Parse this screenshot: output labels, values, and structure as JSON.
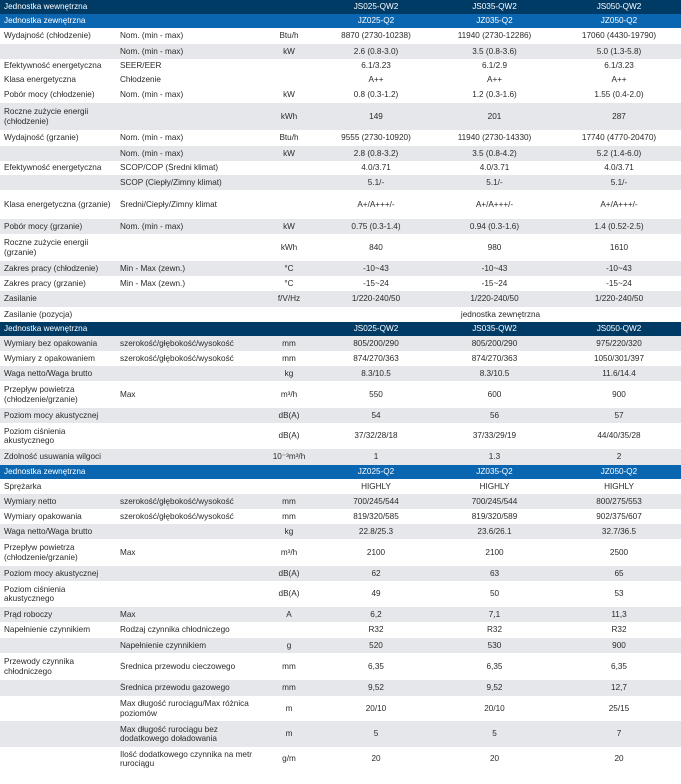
{
  "rows": [
    {
      "kind": "hdr-dark",
      "h": 14,
      "cells": [
        "Jednostka wewnętrzna",
        "",
        "",
        "JS025-QW2",
        "JS035-QW2",
        "JS050-QW2"
      ]
    },
    {
      "kind": "hdr-blue",
      "h": 14,
      "cells": [
        "Jednostka zewnętrzna",
        "",
        "",
        "JZ025-Q2",
        "JZ035-Q2",
        "JZ050-Q2"
      ]
    },
    {
      "kind": "row",
      "h": 16,
      "cells": [
        "Wydajność (chłodzenie)",
        "Nom. (min - max)",
        "Btu/h",
        "8870 (2730-10238)",
        "11940 (2730-12286)",
        "17060 (4430-19790)"
      ]
    },
    {
      "kind": "shade",
      "h": 15,
      "cells": [
        "",
        "Nom. (min - max)",
        "kW",
        "2.6 (0.8-3.0)",
        "3.5 (0.8-3.6)",
        "5.0 (1.3-5.8)"
      ]
    },
    {
      "kind": "row",
      "h": 14,
      "cells": [
        "Efektywność energetyczna",
        "SEER/EER",
        "",
        "6.1/3.23",
        "6.1/2.9",
        "6.1/3.23"
      ]
    },
    {
      "kind": "row",
      "h": 14,
      "cells": [
        "Klasa energetyczna",
        "Chłodzenie",
        "",
        "A++",
        "A++",
        "A++"
      ]
    },
    {
      "kind": "row",
      "h": 16,
      "cells": [
        "Pobór mocy (chłodzenie)",
        "Nom. (min - max)",
        "kW",
        "0.8 (0.3-1.2)",
        "1.2 (0.3-1.6)",
        "1.55 (0.4-2.0)"
      ]
    },
    {
      "kind": "shade",
      "h": 27,
      "cells": [
        "Roczne zużycie energii (chłodzenie)",
        "",
        "kWh",
        "149",
        "201",
        "287"
      ]
    },
    {
      "kind": "row",
      "h": 16,
      "cells": [
        "Wydajność (grzanie)",
        "Nom. (min - max)",
        "Btu/h",
        "9555 (2730-10920)",
        "11940 (2730-14330)",
        "17740 (4770-20470)"
      ]
    },
    {
      "kind": "shade",
      "h": 15,
      "cells": [
        "",
        "Nom. (min - max)",
        "kW",
        "2.8 (0.8-3.2)",
        "3.5 (0.8-4.2)",
        "5.2 (1.4-6.0)"
      ]
    },
    {
      "kind": "row",
      "h": 14,
      "cells": [
        "Efektywność energetyczna",
        "SCOP/COP (Średni klimat)",
        "",
        "4.0/3.71",
        "4.0/3.71",
        "4.0/3.71"
      ]
    },
    {
      "kind": "shade",
      "h": 15,
      "cells": [
        "",
        "SCOP (Ciepły/Zimny klimat)",
        "",
        "5.1/-",
        "5.1/-",
        "5.1/-"
      ]
    },
    {
      "kind": "row",
      "h": 29,
      "cells": [
        "Klasa energetyczna (grzanie)",
        "Średni/Ciepły/Zimny klimat",
        "",
        "A+/A+++/-",
        "A+/A+++/-",
        "A+/A+++/-"
      ]
    },
    {
      "kind": "shade",
      "h": 15,
      "cells": [
        "Pobór mocy (grzanie)",
        "Nom. (min - max)",
        "kW",
        "0.75 (0.3-1.4)",
        "0.94 (0.3-1.6)",
        "1.4 (0.52-2.5)"
      ]
    },
    {
      "kind": "row",
      "h": 27,
      "cells": [
        "Roczne zużycie energii (grzanie)",
        "",
        "kWh",
        "840",
        "980",
        "1610"
      ]
    },
    {
      "kind": "shade",
      "h": 15,
      "cells": [
        "Zakres pracy (chłodzenie)",
        "Min - Max (zewn.)",
        "°C",
        "-10~43",
        "-10~43",
        "-10~43"
      ]
    },
    {
      "kind": "row",
      "h": 15,
      "cells": [
        "Zakres pracy (grzanie)",
        "Min - Max (zewn.)",
        "°C",
        "-15~24",
        "-15~24",
        "-15~24"
      ]
    },
    {
      "kind": "shade",
      "h": 16,
      "cells": [
        "Zasilanie",
        "",
        "f/V/Hz",
        "1/220-240/50",
        "1/220-240/50",
        "1/220-240/50"
      ]
    },
    {
      "kind": "row",
      "h": 15,
      "cells": [
        "Zasilanie (pozycja)",
        "",
        "",
        "",
        "jednostka zewnętrzna",
        ""
      ]
    },
    {
      "kind": "hdr-dark",
      "h": 14,
      "cells": [
        "Jednostka wewnętrzna",
        "",
        "",
        "JS025-QW2",
        "JS035-QW2",
        "JS050-QW2"
      ]
    },
    {
      "kind": "shade",
      "h": 15,
      "cells": [
        "Wymiary bez opakowania",
        "szerokość/głębokość/wysokość",
        "mm",
        "805/200/290",
        "805/200/290",
        "975/220/320"
      ]
    },
    {
      "kind": "row",
      "h": 15,
      "cells": [
        "Wymiary z opakowaniem",
        "szerokość/głębokość/wysokość",
        "mm",
        "874/270/363",
        "874/270/363",
        "1050/301/397"
      ]
    },
    {
      "kind": "shade",
      "h": 15,
      "cells": [
        "Waga netto/Waga brutto",
        "",
        "kg",
        "8.3/10.5",
        "8.3/10.5",
        "11.6/14.4"
      ]
    },
    {
      "kind": "row",
      "h": 27,
      "cells": [
        "Przepływ powietrza (chłodzenie/grzanie)",
        "Max",
        "m³/h",
        "550",
        "600",
        "900"
      ]
    },
    {
      "kind": "shade",
      "h": 15,
      "cells": [
        "Poziom mocy akustycznej",
        "",
        "dB(A)",
        "54",
        "56",
        "57"
      ]
    },
    {
      "kind": "row",
      "h": 26,
      "cells": [
        "Poziom ciśnienia akustycznego",
        "",
        "dB(A)",
        "37/32/28/18",
        "37/33/29/19",
        "44/40/35/28"
      ]
    },
    {
      "kind": "shade",
      "h": 16,
      "cells": [
        "Zdolność usuwania wilgoci",
        "",
        "10⁻³m³/h",
        "1",
        "1.3",
        "2"
      ]
    },
    {
      "kind": "hdr-blue",
      "h": 14,
      "cells": [
        "Jednostka zewnętrzna",
        "",
        "",
        "JZ025-Q2",
        "JZ035-Q2",
        "JZ050-Q2"
      ]
    },
    {
      "kind": "row",
      "h": 15,
      "cells": [
        "Sprężarka",
        "",
        "",
        "HIGHLY",
        "HIGHLY",
        "HIGHLY"
      ]
    },
    {
      "kind": "shade",
      "h": 15,
      "cells": [
        "Wymiary netto",
        "szerokość/głębokość/wysokość",
        "mm",
        "700/245/544",
        "700/245/544",
        "800/275/553"
      ]
    },
    {
      "kind": "row",
      "h": 15,
      "cells": [
        "Wymiary opakowania",
        "szerokość/głębokość/wysokość",
        "mm",
        "819/320/585",
        "819/320/589",
        "902/375/607"
      ]
    },
    {
      "kind": "shade",
      "h": 15,
      "cells": [
        "Waga netto/Waga brutto",
        "",
        "kg",
        "22.8/25.3",
        "23.6/26.1",
        "32.7/36.5"
      ]
    },
    {
      "kind": "row",
      "h": 27,
      "cells": [
        "Przepływ powietrza (chłodzenie/grzanie)",
        "Max",
        "m³/h",
        "2100",
        "2100",
        "2500"
      ]
    },
    {
      "kind": "shade",
      "h": 15,
      "cells": [
        "Poziom mocy akustycznej",
        "",
        "dB(A)",
        "62",
        "63",
        "65"
      ]
    },
    {
      "kind": "row",
      "h": 26,
      "cells": [
        "Poziom ciśnienia akustycznego",
        "",
        "dB(A)",
        "49",
        "50",
        "53"
      ]
    },
    {
      "kind": "shade",
      "h": 15,
      "cells": [
        "Prąd roboczy",
        "Max",
        "A",
        "6,2",
        "7,1",
        "11,3"
      ]
    },
    {
      "kind": "row",
      "h": 16,
      "cells": [
        "Napełnienie czynnikiem",
        "Rodzaj czynnika chłodniczego",
        "",
        "R32",
        "R32",
        "R32"
      ]
    },
    {
      "kind": "shade",
      "h": 15,
      "cells": [
        "",
        "Napełnienie czynnikiem",
        "g",
        "520",
        "530",
        "900"
      ]
    },
    {
      "kind": "row",
      "h": 27,
      "cells": [
        "Przewody czynnika chłodniczego",
        "Średnica przewodu cieczowego",
        "mm",
        "6,35",
        "6,35",
        "6,35"
      ]
    },
    {
      "kind": "shade",
      "h": 16,
      "cells": [
        "",
        "Średnica przewodu gazowego",
        "mm",
        "9,52",
        "9,52",
        "12,7"
      ]
    },
    {
      "kind": "row",
      "h": 25,
      "cells": [
        "",
        "Max długość rurociągu/Max różnica poziomów",
        "m",
        "20/10",
        "20/10",
        "25/15"
      ]
    },
    {
      "kind": "shade",
      "h": 26,
      "cells": [
        "",
        "Max długość rurociągu bez dodatkowego doładowania",
        "m",
        "5",
        "5",
        "7"
      ]
    },
    {
      "kind": "row",
      "h": 24,
      "cells": [
        "",
        "Ilość dodatkowego czynnika na metr rurociągu",
        "g/m",
        "20",
        "20",
        "20"
      ]
    }
  ]
}
